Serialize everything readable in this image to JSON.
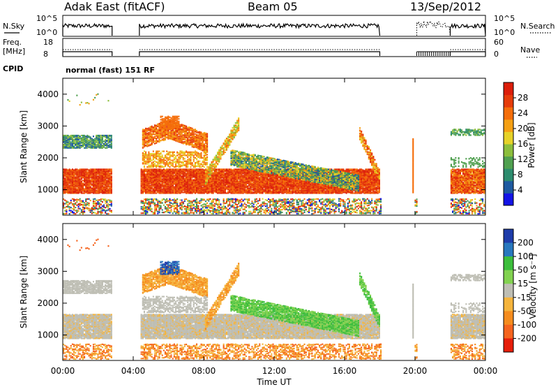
{
  "header": {
    "station": "Adak East (fitACF)",
    "beam": "Beam 05",
    "date": "13/Sep/2012"
  },
  "aux_panels": {
    "nsky_label": "N.Sky",
    "nsky_ticks": [
      "10^5",
      "10^0"
    ],
    "nsearch_label": "N.Search",
    "nsearch_ticks": [
      "10^5",
      "10^0"
    ],
    "freq_label_1": "Freq.",
    "freq_label_2": "[MHz]",
    "freq_ticks": [
      "18",
      "8"
    ],
    "nave_label": "Nave",
    "nave_ticks": [
      "60",
      "0"
    ],
    "cpid_label": "CPID",
    "cpid_value": "normal (fast) 151 RF"
  },
  "chart_data": [
    {
      "type": "heatmap",
      "panel": "power",
      "ylabel": "Slant Range [km]",
      "xlabel": "",
      "ylim": [
        200,
        4500
      ],
      "yticks": [
        "1000",
        "2000",
        "3000",
        "4000"
      ],
      "xlim_hours": [
        0,
        24
      ],
      "colorbar": {
        "label": "Power [dB]",
        "ticks": [
          "4",
          "8",
          "12",
          "16",
          "20",
          "24",
          "28"
        ],
        "colors": [
          "#1414e6",
          "#1e5aa0",
          "#2d8c6e",
          "#50a050",
          "#8cbe3c",
          "#e6d228",
          "#f5a014",
          "#f56e0a",
          "#e63c0a",
          "#dc1e0a"
        ]
      },
      "data_gaps_hours": [
        [
          2.8,
          4.35
        ],
        [
          18.05,
          19.9
        ],
        [
          20.1,
          22.0
        ]
      ],
      "features": [
        {
          "name": "main-band",
          "t": [
            0,
            18
          ],
          "range_km": [
            900,
            1600
          ],
          "level_db": "24-30"
        },
        {
          "name": "upper-band-early",
          "t": [
            0,
            2.8
          ],
          "range_km": [
            2300,
            2700
          ],
          "level_db": "8-16"
        },
        {
          "name": "arc-06",
          "t": [
            4.5,
            8
          ],
          "range_km": [
            2400,
            3300
          ],
          "level_db": "20-28"
        },
        {
          "name": "descending-streak",
          "t": [
            9,
            16.8
          ],
          "range_km": [
            1000,
            2400
          ],
          "level_db": "8-20"
        },
        {
          "name": "late-band",
          "t": [
            22,
            24
          ],
          "range_km": [
            900,
            1700
          ],
          "level_db": "16-28"
        }
      ]
    },
    {
      "type": "heatmap",
      "panel": "velocity",
      "ylabel": "Slant Range [km]",
      "xlabel": "Time UT",
      "ylim": [
        200,
        4500
      ],
      "yticks": [
        "1000",
        "2000",
        "3000",
        "4000"
      ],
      "xticks": [
        "00:00",
        "04:00",
        "08:00",
        "12:00",
        "16:00",
        "20:00",
        "00:00"
      ],
      "xlim_hours": [
        0,
        24
      ],
      "colorbar": {
        "label": "Velocity [m s⁻¹]",
        "ticks": [
          "200",
          "100",
          "50",
          "15",
          "-15",
          "-50",
          "-100",
          "-200"
        ],
        "colors": [
          "#1e3caa",
          "#2878be",
          "#3cbe3c",
          "#82d250",
          "#bebeb4",
          "#f5b43c",
          "#f58c1e",
          "#f5641e",
          "#e61e0a"
        ]
      },
      "features": [
        {
          "name": "ground-scatter",
          "t": [
            0,
            18
          ],
          "range_km": [
            900,
            1700
          ],
          "velocity": "-15 to 15"
        },
        {
          "name": "green-streak",
          "t": [
            10,
            16.5
          ],
          "range_km": [
            1000,
            2000
          ],
          "velocity": "50-100"
        },
        {
          "name": "orange-low",
          "t": [
            0,
            18
          ],
          "range_km": [
            200,
            700
          ],
          "velocity": "-50 to -100"
        }
      ]
    }
  ]
}
